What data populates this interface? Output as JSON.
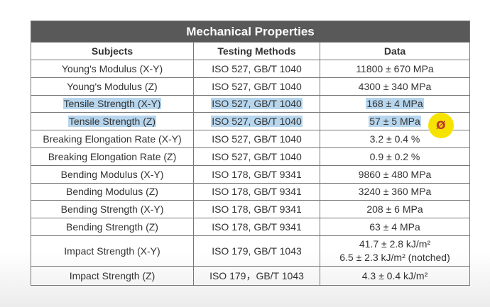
{
  "table": {
    "title": "Mechanical Properties",
    "headers": [
      "Subjects",
      "Testing Methods",
      "Data"
    ],
    "rows": [
      {
        "subject": "Young's Modulus (X-Y)",
        "method": "ISO 527, GB/T 1040",
        "data": "11800 ± 670 MPa"
      },
      {
        "subject": "Young's Modulus (Z)",
        "method": "ISO 527, GB/T 1040",
        "data": "4300 ± 340 MPa"
      },
      {
        "subject": "Tensile Strength (X-Y)",
        "method": "ISO 527, GB/T 1040",
        "data": "168 ± 4 MPa"
      },
      {
        "subject": "Tensile Strength (Z)",
        "method": "ISO 527, GB/T 1040",
        "data": "57 ± 5 MPa"
      },
      {
        "subject": "Breaking Elongation Rate (X-Y)",
        "method": "ISO 527, GB/T 1040",
        "data": "3.2 ± 0.4 %"
      },
      {
        "subject": "Breaking Elongation Rate (Z)",
        "method": "ISO 527, GB/T 1040",
        "data": "0.9 ± 0.2 %"
      },
      {
        "subject": "Bending Modulus (X-Y)",
        "method": "ISO 178, GB/T 9341",
        "data": "9860 ± 480 MPa"
      },
      {
        "subject": "Bending Modulus (Z)",
        "method": "ISO 178, GB/T 9341",
        "data": "3240 ± 360 MPa"
      },
      {
        "subject": "Bending Strength (X-Y)",
        "method": "ISO 178, GB/T 9341",
        "data": "208 ± 6 MPa"
      },
      {
        "subject": "Bending Strength (Z)",
        "method": "ISO 178, GB/T 9341",
        "data": "63 ± 4 MPa"
      },
      {
        "subject": "Impact Strength (X-Y)",
        "method": "ISO 179, GB/T 1043",
        "data": "41.7 ± 2.8 kJ/m²",
        "data2": "6.5 ± 2.3 kJ/m² (notched)"
      },
      {
        "subject": "Impact Strength (Z)",
        "method": "ISO 179，GB/T 1043",
        "data": "4.3 ± 0.4 kJ/m²"
      }
    ]
  },
  "cursor": {
    "glyph": "Ø",
    "color": "#f7e300"
  }
}
